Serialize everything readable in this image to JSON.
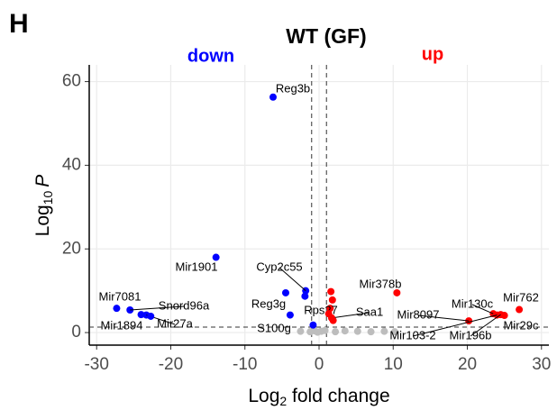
{
  "panel_label": "H",
  "chart_data": {
    "type": "scatter",
    "title": "WT (GF)",
    "annotations": [
      {
        "text": "down",
        "color": "#0000ff"
      },
      {
        "text": "up",
        "color": "#ff0000"
      }
    ],
    "xlabel_parts": [
      "Log",
      "2",
      " fold change"
    ],
    "ylabel_parts": [
      "Log",
      "10",
      "P"
    ],
    "xlim": [
      -31,
      31
    ],
    "xticks": [
      -30,
      -20,
      -10,
      0,
      10,
      20,
      30
    ],
    "ylim": [
      -3,
      64
    ],
    "yticks": [
      0,
      20,
      40,
      60
    ],
    "grid": true,
    "vlines": [
      -1,
      1
    ],
    "hline": 1.3,
    "series": [
      {
        "color": "#bdbdbd",
        "x": [
          -1.2,
          -0.6,
          -0.2,
          0.3,
          0.8,
          2.2,
          3.5,
          5.2,
          7,
          8.8,
          10.2,
          -2.5
        ],
        "values": [
          0.2,
          0.4,
          0.1,
          0.3,
          0.5,
          0.2,
          0.4,
          0.3,
          0.2,
          0.3,
          0.2,
          0.3
        ],
        "point_labels": [
          null,
          null,
          null,
          null,
          null,
          null,
          null,
          null,
          null,
          null,
          null,
          null
        ]
      },
      {
        "color": "#0000ff",
        "x": [
          -6.2,
          -13.9,
          -1.8,
          -4.5,
          -1.9,
          -3.9,
          -0.8,
          -27.3,
          -25.5,
          -24,
          -23.3,
          -22.7
        ],
        "values": [
          56.3,
          18,
          10,
          9.5,
          8.7,
          4.2,
          1.8,
          5.8,
          5.4,
          4.3,
          4.2,
          3.9
        ],
        "point_labels": [
          "Reg3b",
          "Mir1901",
          "Cyp2c55",
          "Reg3g",
          null,
          "S100g",
          null,
          "Mir7081",
          "Snord96a",
          "Mir1894",
          "Mir27a",
          null
        ]
      },
      {
        "color": "#ff0000",
        "x": [
          1.6,
          1.8,
          1.5,
          1.3,
          1.7,
          1.9,
          10.5,
          20.2,
          23.5,
          27,
          24,
          24.5,
          25
        ],
        "values": [
          9.8,
          7.8,
          5.8,
          4.5,
          3.5,
          2.9,
          9.5,
          2.8,
          4.5,
          5.5,
          4.2,
          4.3,
          4.1
        ],
        "point_labels": [
          null,
          null,
          "Rps27",
          null,
          "Saa1",
          null,
          "Mir378b",
          "Mir8097",
          "Mir130c",
          "Mir762",
          "Mir103-2",
          "Mir196b",
          "Mir29c"
        ]
      }
    ]
  }
}
